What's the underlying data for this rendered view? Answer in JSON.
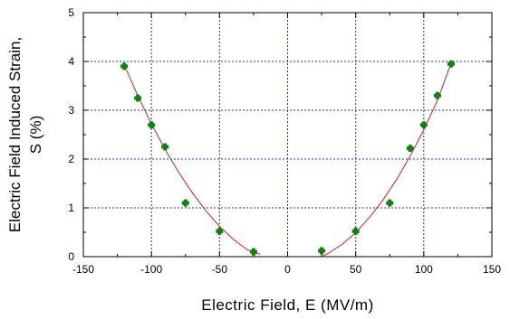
{
  "chart_data": {
    "type": "scatter",
    "title": "",
    "xlabel": "Electric Field, E (MV/m)",
    "ylabel_lines": [
      "Electric Field Induced Strain,",
      "S (%)"
    ],
    "xlim": [
      -150,
      150
    ],
    "ylim": [
      0,
      5
    ],
    "x_ticks": [
      -150,
      -100,
      -50,
      0,
      50,
      100,
      150
    ],
    "x_minor_ticks": [
      -125,
      -75,
      -25,
      25,
      75,
      125
    ],
    "y_ticks": [
      0,
      1,
      2,
      3,
      4,
      5
    ],
    "x_tick_labels": [
      "-150",
      "-100",
      "-50",
      "0",
      "50",
      "100",
      "150"
    ],
    "y_tick_labels": [
      "0",
      "1",
      "2",
      "3",
      "4",
      "5"
    ],
    "grid": true,
    "grid_style": "dotted",
    "legend": "none",
    "marker_color": "#0f7f10",
    "fit_color": "#cc2222",
    "grid_color": "#2a2acc",
    "points": [
      {
        "x": -120,
        "y": 3.9
      },
      {
        "x": -110,
        "y": 3.25
      },
      {
        "x": -100,
        "y": 2.7
      },
      {
        "x": -90,
        "y": 2.25
      },
      {
        "x": -75,
        "y": 1.1
      },
      {
        "x": -50,
        "y": 0.52
      },
      {
        "x": -25,
        "y": 0.1
      },
      {
        "x": 25,
        "y": 0.12
      },
      {
        "x": 50,
        "y": 0.52
      },
      {
        "x": 75,
        "y": 1.1
      },
      {
        "x": 90,
        "y": 2.22
      },
      {
        "x": 100,
        "y": 2.7
      },
      {
        "x": 110,
        "y": 3.3
      },
      {
        "x": 120,
        "y": 3.95
      }
    ],
    "fit_curve_left": [
      {
        "x": -120,
        "y": 3.93
      },
      {
        "x": -110,
        "y": 3.3
      },
      {
        "x": -100,
        "y": 2.72
      },
      {
        "x": -90,
        "y": 2.2
      },
      {
        "x": -80,
        "y": 1.73
      },
      {
        "x": -70,
        "y": 1.31
      },
      {
        "x": -60,
        "y": 0.94
      },
      {
        "x": -50,
        "y": 0.62
      },
      {
        "x": -40,
        "y": 0.36
      },
      {
        "x": -30,
        "y": 0.15
      },
      {
        "x": -24,
        "y": 0.07
      },
      {
        "x": -20,
        "y": 0.05
      }
    ],
    "fit_curve_right": [
      {
        "x": 25,
        "y": 0.0
      },
      {
        "x": 30,
        "y": 0.07
      },
      {
        "x": 40,
        "y": 0.25
      },
      {
        "x": 50,
        "y": 0.49
      },
      {
        "x": 60,
        "y": 0.8
      },
      {
        "x": 70,
        "y": 1.16
      },
      {
        "x": 80,
        "y": 1.58
      },
      {
        "x": 90,
        "y": 2.06
      },
      {
        "x": 100,
        "y": 2.6
      },
      {
        "x": 110,
        "y": 3.2
      },
      {
        "x": 120,
        "y": 3.96
      }
    ]
  }
}
